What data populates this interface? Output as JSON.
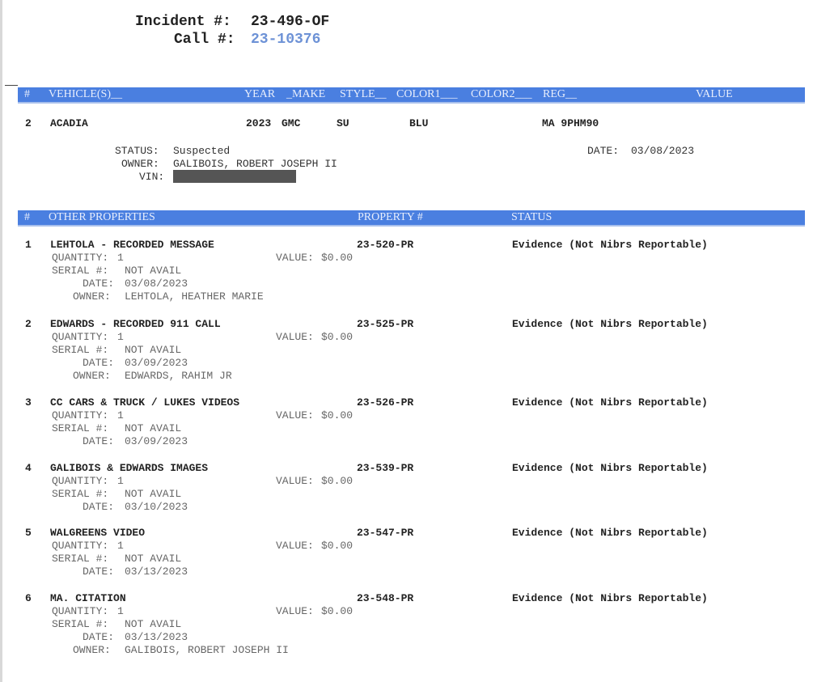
{
  "header": {
    "incident_label": "Incident #:",
    "incident_value": "23-496-OF",
    "call_label": "Call #:",
    "call_value": "23-10376"
  },
  "vehicles": {
    "columns": [
      "#",
      "VEHICLE(S)__",
      "YEAR",
      "_MAKE",
      "STYLE__",
      "COLOR1___",
      "COLOR2___",
      "REG__",
      "VALUE"
    ],
    "row": {
      "num": "2",
      "name": "ACADIA",
      "year": "2023",
      "make": "GMC",
      "style": "SU",
      "color1": "BLU",
      "reg": "MA 9PHM90"
    },
    "status_label": "STATUS:",
    "status": "Suspected",
    "owner_label": "OWNER:",
    "owner": "GALIBOIS, ROBERT JOSEPH II",
    "vin_label": "VIN:",
    "date_label": "DATE:",
    "date": "03/08/2023"
  },
  "properties": {
    "columns": [
      "#",
      "OTHER PROPERTIES",
      "PROPERTY #",
      "STATUS"
    ],
    "items": [
      {
        "num": "1",
        "name": "LEHTOLA - RECORDED MESSAGE",
        "property_no": "23-520-PR",
        "status": "Evidence (Not Nibrs Reportable)",
        "quantity": "1",
        "value": "$0.00",
        "serial": "NOT AVAIL",
        "date": "03/08/2023",
        "owner": "LEHTOLA, HEATHER MARIE"
      },
      {
        "num": "2",
        "name": "EDWARDS - RECORDED 911 CALL",
        "property_no": "23-525-PR",
        "status": "Evidence (Not Nibrs Reportable)",
        "quantity": "1",
        "value": "$0.00",
        "serial": "NOT AVAIL",
        "date": "03/09/2023",
        "owner": "EDWARDS, RAHIM JR"
      },
      {
        "num": "3",
        "name": "CC CARS & TRUCK / LUKES VIDEOS",
        "property_no": "23-526-PR",
        "status": "Evidence (Not Nibrs Reportable)",
        "quantity": "1",
        "value": "$0.00",
        "serial": "NOT AVAIL",
        "date": "03/09/2023"
      },
      {
        "num": "4",
        "name": "GALIBOIS & EDWARDS IMAGES",
        "property_no": "23-539-PR",
        "status": "Evidence (Not Nibrs Reportable)",
        "quantity": "1",
        "value": "$0.00",
        "serial": "NOT AVAIL",
        "date": "03/10/2023"
      },
      {
        "num": "5",
        "name": "WALGREENS VIDEO",
        "property_no": "23-547-PR",
        "status": "Evidence (Not Nibrs Reportable)",
        "quantity": "1",
        "value": "$0.00",
        "serial": "NOT AVAIL",
        "date": "03/13/2023"
      },
      {
        "num": "6",
        "name": "MA. CITATION",
        "property_no": "23-548-PR",
        "status": "Evidence (Not Nibrs Reportable)",
        "quantity": "1",
        "value": "$0.00",
        "serial": "NOT AVAIL",
        "date": "03/13/2023",
        "owner": "GALIBOIS, ROBERT JOSEPH II"
      }
    ],
    "labels": {
      "quantity": "QUANTITY:",
      "value": "VALUE:",
      "serial": "SERIAL #:",
      "date": "DATE:",
      "owner": "OWNER:"
    }
  },
  "colors": {
    "header_bar": "#4a7fe0",
    "call_number": "#6d92d6"
  }
}
